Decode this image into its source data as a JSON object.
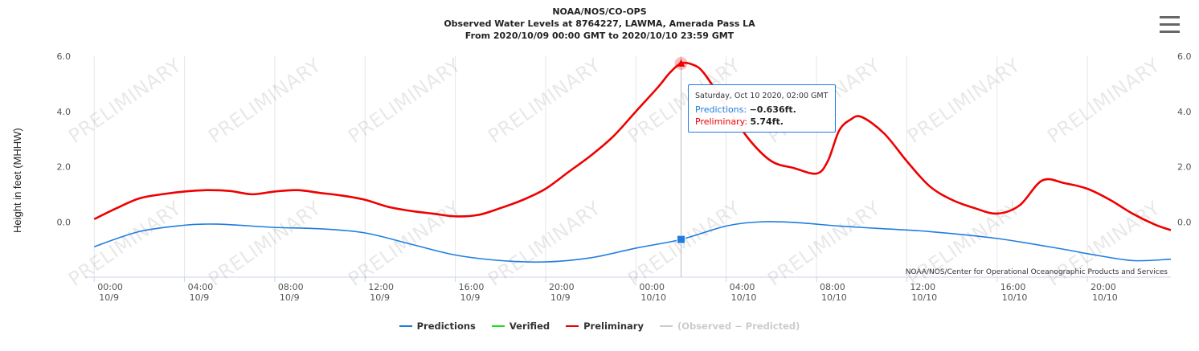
{
  "header": {
    "title_line1": "NOAA/NOS/CO-OPS",
    "title_line2": "Observed Water Levels at 8764227, LAWMA, Amerada Pass LA",
    "title_line3": "From 2020/10/09 00:00 GMT to 2020/10/10 23:59 GMT"
  },
  "menu": {
    "icon": "hamburger-menu-icon"
  },
  "credit": "NOAA/NOS/Center for Operational Oceanographic Products and Services",
  "watermark": "PRELIMINARY",
  "tooltip": {
    "date": "Saturday, Oct 10 2020, 02:00 GMT",
    "predictions_label": "Predictions:",
    "predictions_value": "−0.636ft.",
    "preliminary_label": "Preliminary:",
    "preliminary_value": "5.74ft."
  },
  "legend": [
    {
      "name": "Predictions",
      "color": "#1f7de0",
      "hidden": false
    },
    {
      "name": "Verified",
      "color": "#22dd22",
      "hidden": false
    },
    {
      "name": "Preliminary",
      "color": "#ee0000",
      "hidden": false
    },
    {
      "name": "(Observed − Predicted)",
      "color": "#cccccc",
      "hidden": true
    }
  ],
  "chart_data": {
    "type": "line",
    "ylabel": "Height in feet (MHHW)",
    "ylim": [
      -2,
      6
    ],
    "yticks": [
      0,
      2,
      4,
      6
    ],
    "ytick_labels": [
      "0.0",
      "2.0",
      "4.0",
      "6.0"
    ],
    "xlim": [
      -0.4,
      47.7
    ],
    "xticks": [
      0,
      4,
      8,
      12,
      16,
      20,
      24,
      28,
      32,
      36,
      40,
      44
    ],
    "xtick_labels": [
      [
        "00:00",
        "10/9"
      ],
      [
        "04:00",
        "10/9"
      ],
      [
        "08:00",
        "10/9"
      ],
      [
        "12:00",
        "10/9"
      ],
      [
        "16:00",
        "10/9"
      ],
      [
        "20:00",
        "10/9"
      ],
      [
        "00:00",
        "10/10"
      ],
      [
        "04:00",
        "10/10"
      ],
      [
        "08:00",
        "10/10"
      ],
      [
        "12:00",
        "10/10"
      ],
      [
        "16:00",
        "10/10"
      ],
      [
        "20:00",
        "10/10"
      ]
    ],
    "x_unit": "hours from 2020/10/09 00:00 GMT",
    "grid": true,
    "crosshair_x": 26,
    "series": [
      {
        "name": "Predictions",
        "color": "#1f7de0",
        "x": [
          0,
          2,
          4,
          5,
          6,
          8,
          10,
          12,
          14,
          16,
          18,
          20,
          22,
          24,
          26,
          28,
          29.5,
          31,
          33,
          35,
          37,
          40,
          43,
          44,
          46,
          47.7
        ],
        "y": [
          -0.9,
          -0.35,
          -0.12,
          -0.08,
          -0.1,
          -0.2,
          -0.25,
          -0.4,
          -0.8,
          -1.2,
          -1.4,
          -1.45,
          -1.3,
          -0.95,
          -0.636,
          -0.15,
          0,
          -0.02,
          -0.15,
          -0.25,
          -0.35,
          -0.6,
          -1.0,
          -1.15,
          -1.4,
          -1.35
        ]
      },
      {
        "name": "Preliminary",
        "color": "#ee0000",
        "x": [
          0,
          1,
          2,
          3,
          4,
          5,
          6,
          7,
          8,
          9,
          10,
          11,
          12,
          13,
          14,
          15,
          16,
          17,
          18,
          19,
          20,
          21,
          22,
          23,
          24,
          25,
          25.5,
          26,
          26.5,
          27,
          28,
          29,
          30,
          31,
          32,
          32.5,
          33,
          33.5,
          34,
          35,
          36,
          37,
          38,
          39,
          40,
          41,
          42,
          43,
          44,
          45,
          46,
          47,
          47.7
        ],
        "y": [
          0.1,
          0.5,
          0.85,
          1.0,
          1.1,
          1.15,
          1.12,
          1.0,
          1.1,
          1.15,
          1.05,
          0.95,
          0.8,
          0.55,
          0.4,
          0.3,
          0.2,
          0.25,
          0.5,
          0.8,
          1.2,
          1.8,
          2.4,
          3.1,
          4.0,
          4.9,
          5.4,
          5.74,
          5.7,
          5.4,
          4.2,
          3.0,
          2.2,
          1.95,
          1.75,
          2.2,
          3.3,
          3.7,
          3.8,
          3.2,
          2.2,
          1.3,
          0.8,
          0.5,
          0.3,
          0.6,
          1.5,
          1.4,
          1.2,
          0.8,
          0.3,
          -0.1,
          -0.3
        ]
      }
    ]
  }
}
